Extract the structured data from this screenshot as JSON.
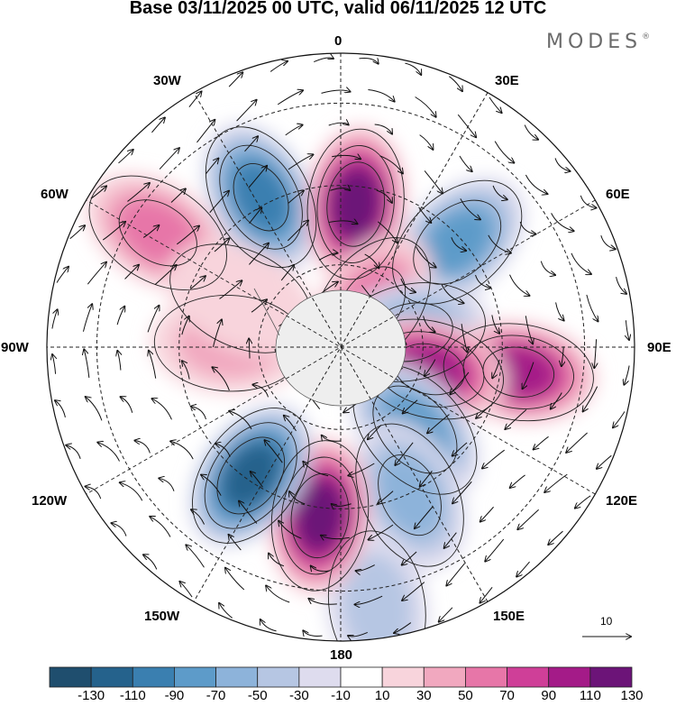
{
  "title": "Base 03/11/2025 00 UTC, valid 06/11/2025 12 UTC",
  "brand": {
    "name": "MODES",
    "mark": "®"
  },
  "longitude_labels": {
    "lon_0": "0",
    "lon_30e": "30E",
    "lon_60e": "60E",
    "lon_90e": "90E",
    "lon_120e": "120E",
    "lon_150e": "150E",
    "lon_180": "180",
    "lon_150w": "150W",
    "lon_120w": "120W",
    "lon_90w": "90W",
    "lon_60w": "60W",
    "lon_30w": "30W"
  },
  "reference_vector": {
    "value": "10"
  },
  "colorbar": {
    "colors": [
      "#1f4e6e",
      "#25628c",
      "#3a7fb0",
      "#5d9bc9",
      "#8db3da",
      "#b6c6e3",
      "#dedcee",
      "#ffffff",
      "#f8d4dc",
      "#f1a8bf",
      "#e776a8",
      "#cf3f98",
      "#a41b88",
      "#6c1478"
    ],
    "labels": [
      "-130",
      "-110",
      "-90",
      "-70",
      "-50",
      "-30",
      "-10",
      "10",
      "30",
      "50",
      "70",
      "90",
      "110",
      "130"
    ]
  },
  "anomaly_centers": [
    {
      "lon_deg": -28,
      "colat_deg": 52,
      "value": -115
    },
    {
      "lon_deg": 6,
      "colat_deg": 44,
      "value": 120
    },
    {
      "lon_deg": 48,
      "colat_deg": 48,
      "value": -90
    },
    {
      "lon_deg": 36,
      "colat_deg": 16,
      "value": 60
    },
    {
      "lon_deg": 78,
      "colat_deg": 22,
      "value": -70
    },
    {
      "lon_deg": 98,
      "colat_deg": 55,
      "value": 110
    },
    {
      "lon_deg": 104,
      "colat_deg": 28,
      "value": 100
    },
    {
      "lon_deg": 138,
      "colat_deg": 34,
      "value": -85
    },
    {
      "lon_deg": 155,
      "colat_deg": 50,
      "value": -60
    },
    {
      "lon_deg": 172,
      "colat_deg": 80,
      "value": -55
    },
    {
      "lon_deg": -173,
      "colat_deg": 52,
      "value": 125
    },
    {
      "lon_deg": -145,
      "colat_deg": 48,
      "value": -120
    },
    {
      "lon_deg": -88,
      "colat_deg": 34,
      "value": 45
    },
    {
      "lon_deg": -58,
      "colat_deg": 66,
      "value": 70
    },
    {
      "lon_deg": -64,
      "colat_deg": 34,
      "value": 30
    }
  ]
}
